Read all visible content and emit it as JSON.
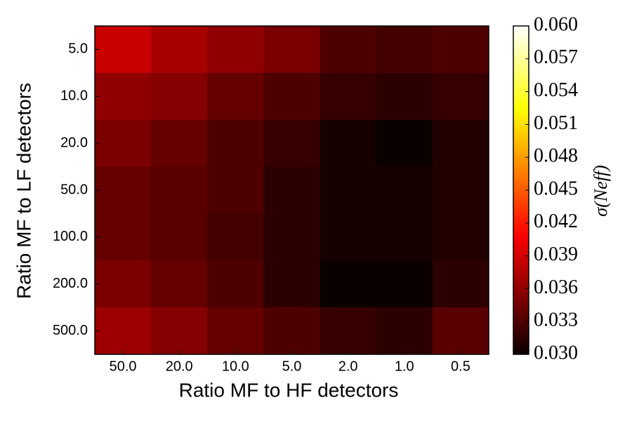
{
  "chart_data": {
    "type": "heatmap",
    "x_label": "Ratio MF to HF detectors",
    "y_label": "Ratio MF to LF detectors",
    "x_categories": [
      "50.0",
      "20.0",
      "10.0",
      "5.0",
      "2.0",
      "1.0",
      "0.5"
    ],
    "y_categories": [
      "5.0",
      "10.0",
      "20.0",
      "50.0",
      "100.0",
      "200.0",
      "500.0"
    ],
    "z": [
      [
        0.0385,
        0.037,
        0.036,
        0.035,
        0.033,
        0.0325,
        0.033
      ],
      [
        0.036,
        0.0355,
        0.034,
        0.033,
        0.032,
        0.0315,
        0.032
      ],
      [
        0.035,
        0.034,
        0.033,
        0.032,
        0.0305,
        0.03,
        0.031
      ],
      [
        0.034,
        0.0335,
        0.033,
        0.0315,
        0.0305,
        0.0305,
        0.031
      ],
      [
        0.034,
        0.0335,
        0.0325,
        0.0315,
        0.0305,
        0.0305,
        0.031
      ],
      [
        0.035,
        0.034,
        0.033,
        0.0315,
        0.03,
        0.03,
        0.0315
      ],
      [
        0.0365,
        0.0355,
        0.034,
        0.033,
        0.032,
        0.0315,
        0.0335
      ]
    ],
    "colormap": "hot",
    "zlim": [
      0.03,
      0.06
    ],
    "colorbar_label": "σ(Neff)",
    "colorbar_ticks": [
      {
        "value": 0.03,
        "label": "0.030"
      },
      0.033,
      0.036,
      0.039,
      0.042,
      0.045,
      0.048,
      0.051,
      0.054,
      0.057,
      {
        "value": 0.06,
        "label": "0.060"
      }
    ]
  }
}
